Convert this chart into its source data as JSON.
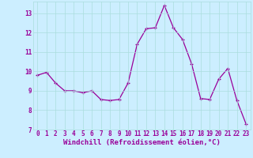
{
  "x": [
    0,
    1,
    2,
    3,
    4,
    5,
    6,
    7,
    8,
    9,
    10,
    11,
    12,
    13,
    14,
    15,
    16,
    17,
    18,
    19,
    20,
    21,
    22,
    23
  ],
  "y": [
    9.8,
    9.95,
    9.4,
    9.0,
    9.0,
    8.9,
    9.0,
    8.55,
    8.5,
    8.55,
    9.4,
    11.4,
    12.2,
    12.25,
    13.4,
    12.25,
    11.65,
    10.4,
    8.6,
    8.55,
    9.6,
    10.15,
    8.5,
    7.3
  ],
  "line_color": "#990099",
  "marker": "+",
  "marker_size": 3.5,
  "marker_linewidth": 0.9,
  "background_color": "#cceeff",
  "grid_color": "#aadddd",
  "xlabel": "Windchill (Refroidissement éolien,°C)",
  "xlim": [
    -0.5,
    23.5
  ],
  "ylim": [
    7,
    13.6
  ],
  "yticks": [
    7,
    8,
    9,
    10,
    11,
    12,
    13
  ],
  "xticks": [
    0,
    1,
    2,
    3,
    4,
    5,
    6,
    7,
    8,
    9,
    10,
    11,
    12,
    13,
    14,
    15,
    16,
    17,
    18,
    19,
    20,
    21,
    22,
    23
  ],
  "tick_color": "#990099",
  "tick_fontsize": 5.5,
  "xlabel_fontsize": 6.5,
  "line_width": 0.9
}
